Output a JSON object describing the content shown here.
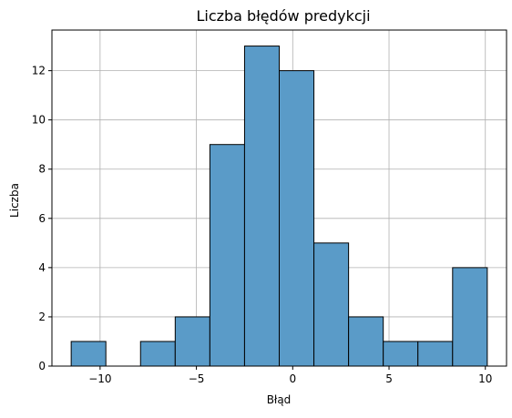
{
  "chart_data": {
    "type": "bar",
    "title": "Liczba błędów predykcji",
    "xlabel": "Błąd",
    "ylabel": "Liczba",
    "bins": [
      {
        "start": -11.5,
        "end": -9.7,
        "count": 1
      },
      {
        "start": -9.7,
        "end": -7.9,
        "count": 0
      },
      {
        "start": -7.9,
        "end": -6.1,
        "count": 1
      },
      {
        "start": -6.1,
        "end": -4.3,
        "count": 2
      },
      {
        "start": -4.3,
        "end": -2.5,
        "count": 9
      },
      {
        "start": -2.5,
        "end": -0.7,
        "count": 13
      },
      {
        "start": -0.7,
        "end": 1.1,
        "count": 12
      },
      {
        "start": 1.1,
        "end": 2.9,
        "count": 5
      },
      {
        "start": 2.9,
        "end": 4.7,
        "count": 2
      },
      {
        "start": 4.7,
        "end": 6.5,
        "count": 1
      },
      {
        "start": 6.5,
        "end": 8.3,
        "count": 1
      },
      {
        "start": 8.3,
        "end": 10.1,
        "count": 4
      }
    ],
    "xlim": [
      -12.5,
      11.1
    ],
    "ylim": [
      0,
      13.65
    ],
    "xticks": [
      -10,
      -5,
      0,
      5,
      10
    ],
    "xtick_labels": [
      "−10",
      "−5",
      "0",
      "5",
      "10"
    ],
    "yticks": [
      0,
      2,
      4,
      6,
      8,
      10,
      12
    ],
    "ytick_labels": [
      "0",
      "2",
      "4",
      "6",
      "8",
      "10",
      "12"
    ],
    "grid": true,
    "bar_color": "#5a9bc8",
    "bar_edge_color": "#000000",
    "grid_color": "#b0b0b0"
  }
}
